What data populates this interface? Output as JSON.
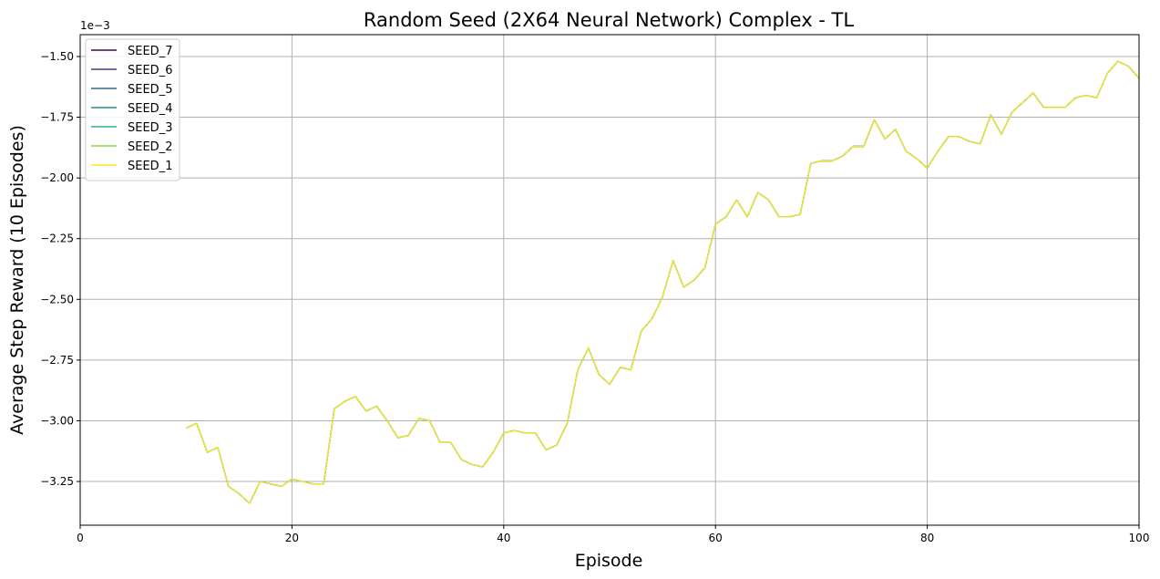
{
  "chart_data": {
    "type": "line",
    "title": "Random Seed (2X64 Neural Network) Complex - TL",
    "xlabel": "Episode",
    "ylabel": "Average Step Reward (10 Episodes)",
    "y_offset_label": "1e−3",
    "y_scale": 0.001,
    "xlim": [
      0,
      100
    ],
    "ylim": [
      -3.43,
      -1.41
    ],
    "x_ticks": [
      0,
      20,
      40,
      60,
      80,
      100
    ],
    "x_tick_labels": [
      "0",
      "20",
      "40",
      "60",
      "80",
      "100"
    ],
    "y_ticks": [
      -3.25,
      -3.0,
      -2.75,
      -2.5,
      -2.25,
      -2.0,
      -1.75,
      -1.5
    ],
    "y_tick_labels": [
      "−3.25",
      "−3.00",
      "−2.75",
      "−2.50",
      "−2.25",
      "−2.00",
      "−1.75",
      "−1.50"
    ],
    "grid": true,
    "legend_position": "upper-left",
    "x": [
      10,
      11,
      12,
      13,
      14,
      15,
      16,
      17,
      18,
      19,
      20,
      21,
      22,
      23,
      24,
      25,
      26,
      27,
      28,
      29,
      30,
      31,
      32,
      33,
      34,
      35,
      36,
      37,
      38,
      39,
      40,
      41,
      42,
      43,
      44,
      45,
      46,
      47,
      48,
      49,
      50,
      51,
      52,
      53,
      54,
      55,
      56,
      57,
      58,
      59,
      60,
      61,
      62,
      63,
      64,
      65,
      66,
      67,
      68,
      69,
      70,
      71,
      72,
      73,
      74,
      75,
      76,
      77,
      78,
      79,
      80,
      81,
      82,
      83,
      84,
      85,
      86,
      87,
      88,
      89,
      90,
      91,
      92,
      93,
      94,
      95,
      96,
      97,
      98,
      99,
      100
    ],
    "series": [
      {
        "name": "SEED_7",
        "color": "#440154",
        "values": [
          -3.03,
          -3.01,
          -3.13,
          -3.11,
          -3.27,
          -3.3,
          -3.34,
          -3.25,
          -3.26,
          -3.27,
          -3.24,
          -3.25,
          -3.26,
          -3.26,
          -2.95,
          -2.92,
          -2.9,
          -2.96,
          -2.94,
          -3.0,
          -3.07,
          -3.06,
          -2.99,
          -3.0,
          -3.09,
          -3.09,
          -3.16,
          -3.18,
          -3.19,
          -3.13,
          -3.05,
          -3.04,
          -3.05,
          -3.05,
          -3.12,
          -3.1,
          -3.01,
          -2.79,
          -2.7,
          -2.81,
          -2.85,
          -2.78,
          -2.79,
          -2.63,
          -2.58,
          -2.49,
          -2.34,
          -2.45,
          -2.42,
          -2.37,
          -2.19,
          -2.16,
          -2.09,
          -2.16,
          -2.06,
          -2.09,
          -2.16,
          -2.16,
          -2.15,
          -1.94,
          -1.93,
          -1.93,
          -1.91,
          -1.87,
          -1.87,
          -1.76,
          -1.84,
          -1.8,
          -1.89,
          -1.92,
          -1.96,
          -1.89,
          -1.83,
          -1.83,
          -1.85,
          -1.86,
          -1.74,
          -1.82,
          -1.73,
          -1.69,
          -1.65,
          -1.71,
          -1.71,
          -1.71,
          -1.67,
          -1.66,
          -1.67,
          -1.57,
          -1.52,
          -1.54,
          -1.59
        ]
      },
      {
        "name": "SEED_6",
        "color": "#443983",
        "values": [
          -3.03,
          -3.01,
          -3.13,
          -3.11,
          -3.27,
          -3.3,
          -3.34,
          -3.25,
          -3.26,
          -3.27,
          -3.24,
          -3.25,
          -3.26,
          -3.26,
          -2.95,
          -2.92,
          -2.9,
          -2.96,
          -2.94,
          -3.0,
          -3.07,
          -3.06,
          -2.99,
          -3.0,
          -3.09,
          -3.09,
          -3.16,
          -3.18,
          -3.19,
          -3.13,
          -3.05,
          -3.04,
          -3.05,
          -3.05,
          -3.12,
          -3.1,
          -3.01,
          -2.79,
          -2.7,
          -2.81,
          -2.85,
          -2.78,
          -2.79,
          -2.63,
          -2.58,
          -2.49,
          -2.34,
          -2.45,
          -2.42,
          -2.37,
          -2.19,
          -2.16,
          -2.09,
          -2.16,
          -2.06,
          -2.09,
          -2.16,
          -2.16,
          -2.15,
          -1.94,
          -1.93,
          -1.93,
          -1.91,
          -1.87,
          -1.87,
          -1.76,
          -1.84,
          -1.8,
          -1.89,
          -1.92,
          -1.96,
          -1.89,
          -1.83,
          -1.83,
          -1.85,
          -1.86,
          -1.74,
          -1.82,
          -1.73,
          -1.69,
          -1.65,
          -1.71,
          -1.71,
          -1.71,
          -1.67,
          -1.66,
          -1.67,
          -1.57,
          -1.52,
          -1.54,
          -1.59
        ]
      },
      {
        "name": "SEED_5",
        "color": "#31688e",
        "values": [
          -3.03,
          -3.01,
          -3.13,
          -3.11,
          -3.27,
          -3.3,
          -3.34,
          -3.25,
          -3.26,
          -3.27,
          -3.24,
          -3.25,
          -3.26,
          -3.26,
          -2.95,
          -2.92,
          -2.9,
          -2.96,
          -2.94,
          -3.0,
          -3.07,
          -3.06,
          -2.99,
          -3.0,
          -3.09,
          -3.09,
          -3.16,
          -3.18,
          -3.19,
          -3.13,
          -3.05,
          -3.04,
          -3.05,
          -3.05,
          -3.12,
          -3.1,
          -3.01,
          -2.79,
          -2.7,
          -2.81,
          -2.85,
          -2.78,
          -2.79,
          -2.63,
          -2.58,
          -2.49,
          -2.34,
          -2.45,
          -2.42,
          -2.37,
          -2.19,
          -2.16,
          -2.09,
          -2.16,
          -2.06,
          -2.09,
          -2.16,
          -2.16,
          -2.15,
          -1.94,
          -1.93,
          -1.93,
          -1.91,
          -1.87,
          -1.87,
          -1.76,
          -1.84,
          -1.8,
          -1.89,
          -1.92,
          -1.96,
          -1.89,
          -1.83,
          -1.83,
          -1.85,
          -1.86,
          -1.74,
          -1.82,
          -1.73,
          -1.69,
          -1.65,
          -1.71,
          -1.71,
          -1.71,
          -1.67,
          -1.66,
          -1.67,
          -1.57,
          -1.52,
          -1.54,
          -1.59
        ]
      },
      {
        "name": "SEED_4",
        "color": "#21918c",
        "values": [
          -3.03,
          -3.01,
          -3.13,
          -3.11,
          -3.27,
          -3.3,
          -3.34,
          -3.25,
          -3.26,
          -3.27,
          -3.24,
          -3.25,
          -3.26,
          -3.26,
          -2.95,
          -2.92,
          -2.9,
          -2.96,
          -2.94,
          -3.0,
          -3.07,
          -3.06,
          -2.99,
          -3.0,
          -3.09,
          -3.09,
          -3.16,
          -3.18,
          -3.19,
          -3.13,
          -3.05,
          -3.04,
          -3.05,
          -3.05,
          -3.12,
          -3.1,
          -3.01,
          -2.79,
          -2.7,
          -2.81,
          -2.85,
          -2.78,
          -2.79,
          -2.63,
          -2.58,
          -2.49,
          -2.34,
          -2.45,
          -2.42,
          -2.37,
          -2.19,
          -2.16,
          -2.09,
          -2.16,
          -2.06,
          -2.09,
          -2.16,
          -2.16,
          -2.15,
          -1.94,
          -1.93,
          -1.93,
          -1.91,
          -1.87,
          -1.87,
          -1.76,
          -1.84,
          -1.8,
          -1.89,
          -1.92,
          -1.96,
          -1.89,
          -1.83,
          -1.83,
          -1.85,
          -1.86,
          -1.74,
          -1.82,
          -1.73,
          -1.69,
          -1.65,
          -1.71,
          -1.71,
          -1.71,
          -1.67,
          -1.66,
          -1.67,
          -1.57,
          -1.52,
          -1.54,
          -1.59
        ]
      },
      {
        "name": "SEED_3",
        "color": "#35b779",
        "values": [
          -3.03,
          -3.01,
          -3.13,
          -3.11,
          -3.27,
          -3.3,
          -3.34,
          -3.25,
          -3.26,
          -3.27,
          -3.24,
          -3.25,
          -3.26,
          -3.26,
          -2.95,
          -2.92,
          -2.9,
          -2.96,
          -2.94,
          -3.0,
          -3.07,
          -3.06,
          -2.99,
          -3.0,
          -3.09,
          -3.09,
          -3.16,
          -3.18,
          -3.19,
          -3.13,
          -3.05,
          -3.04,
          -3.05,
          -3.05,
          -3.12,
          -3.1,
          -3.01,
          -2.79,
          -2.7,
          -2.81,
          -2.85,
          -2.78,
          -2.79,
          -2.63,
          -2.58,
          -2.49,
          -2.34,
          -2.45,
          -2.42,
          -2.37,
          -2.19,
          -2.16,
          -2.09,
          -2.16,
          -2.06,
          -2.09,
          -2.16,
          -2.16,
          -2.15,
          -1.94,
          -1.93,
          -1.93,
          -1.91,
          -1.87,
          -1.87,
          -1.76,
          -1.84,
          -1.8,
          -1.89,
          -1.92,
          -1.96,
          -1.89,
          -1.83,
          -1.83,
          -1.85,
          -1.86,
          -1.74,
          -1.82,
          -1.73,
          -1.69,
          -1.65,
          -1.71,
          -1.71,
          -1.71,
          -1.67,
          -1.66,
          -1.67,
          -1.57,
          -1.52,
          -1.54,
          -1.59
        ]
      },
      {
        "name": "SEED_2",
        "color": "#90d743",
        "values": [
          -3.03,
          -3.01,
          -3.13,
          -3.11,
          -3.27,
          -3.3,
          -3.34,
          -3.25,
          -3.26,
          -3.27,
          -3.24,
          -3.25,
          -3.26,
          -3.26,
          -2.95,
          -2.92,
          -2.9,
          -2.96,
          -2.94,
          -3.0,
          -3.07,
          -3.06,
          -2.99,
          -3.0,
          -3.09,
          -3.09,
          -3.16,
          -3.18,
          -3.19,
          -3.13,
          -3.05,
          -3.04,
          -3.05,
          -3.05,
          -3.12,
          -3.1,
          -3.01,
          -2.79,
          -2.7,
          -2.81,
          -2.85,
          -2.78,
          -2.79,
          -2.63,
          -2.58,
          -2.49,
          -2.34,
          -2.45,
          -2.42,
          -2.37,
          -2.19,
          -2.16,
          -2.09,
          -2.16,
          -2.06,
          -2.09,
          -2.16,
          -2.16,
          -2.15,
          -1.94,
          -1.93,
          -1.93,
          -1.91,
          -1.87,
          -1.87,
          -1.76,
          -1.84,
          -1.8,
          -1.89,
          -1.92,
          -1.96,
          -1.89,
          -1.83,
          -1.83,
          -1.85,
          -1.86,
          -1.74,
          -1.82,
          -1.73,
          -1.69,
          -1.65,
          -1.71,
          -1.71,
          -1.71,
          -1.67,
          -1.66,
          -1.67,
          -1.57,
          -1.52,
          -1.54,
          -1.59
        ]
      },
      {
        "name": "SEED_1",
        "color": "#fde725",
        "values": [
          -3.03,
          -3.01,
          -3.13,
          -3.11,
          -3.27,
          -3.3,
          -3.34,
          -3.25,
          -3.26,
          -3.27,
          -3.24,
          -3.25,
          -3.26,
          -3.26,
          -2.95,
          -2.92,
          -2.9,
          -2.96,
          -2.94,
          -3.0,
          -3.07,
          -3.06,
          -2.99,
          -3.0,
          -3.09,
          -3.09,
          -3.16,
          -3.18,
          -3.19,
          -3.13,
          -3.05,
          -3.04,
          -3.05,
          -3.05,
          -3.12,
          -3.1,
          -3.01,
          -2.79,
          -2.7,
          -2.81,
          -2.85,
          -2.78,
          -2.79,
          -2.63,
          -2.58,
          -2.49,
          -2.34,
          -2.45,
          -2.42,
          -2.37,
          -2.19,
          -2.16,
          -2.09,
          -2.16,
          -2.06,
          -2.09,
          -2.16,
          -2.16,
          -2.15,
          -1.94,
          -1.93,
          -1.93,
          -1.91,
          -1.87,
          -1.87,
          -1.76,
          -1.84,
          -1.8,
          -1.89,
          -1.92,
          -1.96,
          -1.89,
          -1.83,
          -1.83,
          -1.85,
          -1.86,
          -1.74,
          -1.82,
          -1.73,
          -1.69,
          -1.65,
          -1.71,
          -1.71,
          -1.71,
          -1.67,
          -1.66,
          -1.67,
          -1.57,
          -1.52,
          -1.54,
          -1.59
        ]
      }
    ]
  }
}
